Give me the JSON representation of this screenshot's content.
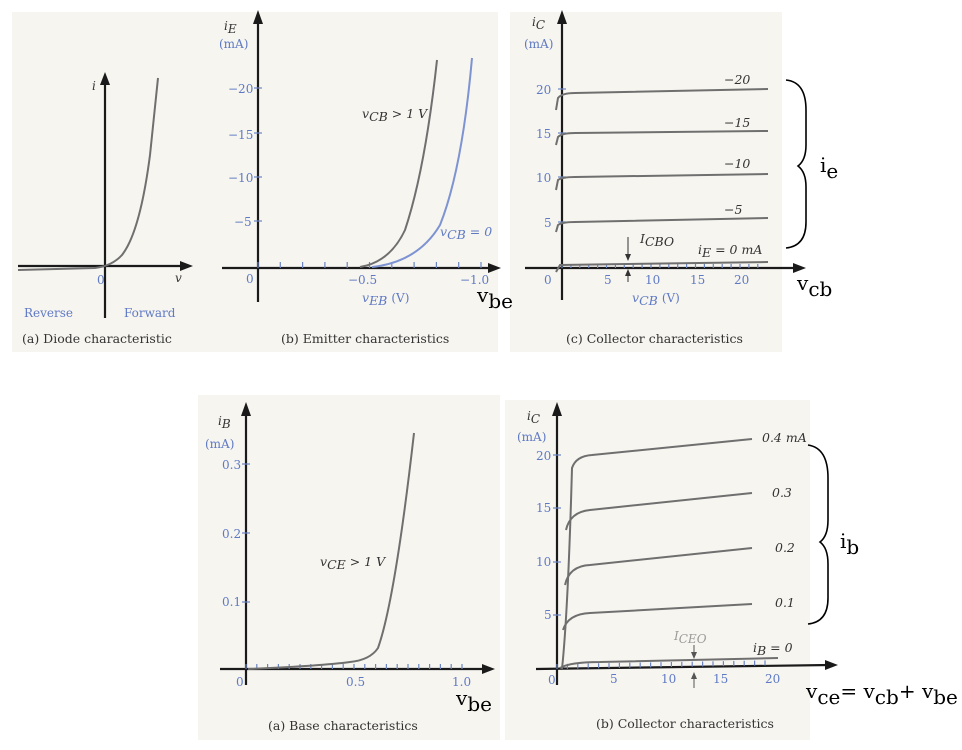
{
  "panels": {
    "diode": {
      "caption": "(a) Diode characteristic",
      "y_var": "i",
      "x_var": "v",
      "origin": "0",
      "left_label": "Reverse",
      "right_label": "Forward"
    },
    "emitter": {
      "caption": "(b) Emitter characteristics",
      "y_var": "i",
      "y_sub": "E",
      "y_unit": "(mA)",
      "x_var": "v",
      "x_sub": "EB",
      "x_unit": "(V)",
      "origin": "0",
      "ann_dark_var": "v",
      "ann_dark_sub": "CB",
      "ann_dark_rest": " > 1 V",
      "ann_blue_var": "v",
      "ann_blue_sub": "CB",
      "ann_blue_rest": " = 0",
      "handwritten": "v",
      "handwritten_sub": "be"
    },
    "collector_cb": {
      "caption": "(c) Collector characteristics",
      "y_var": "i",
      "y_sub": "C",
      "y_unit": "(mA)",
      "x_var": "v",
      "x_sub": "CB",
      "x_unit": "(V)",
      "origin": "0",
      "icbo_var": "I",
      "icbo_sub": "CBO",
      "ie_zero_var": "i",
      "ie_zero_sub": "E",
      "ie_zero_rest": " = 0 mA",
      "handwritten": "v",
      "handwritten_sub": "cb",
      "brace_label": "i",
      "brace_label_sub": "e"
    },
    "base": {
      "caption": "(a) Base characteristics",
      "y_var": "i",
      "y_sub": "B",
      "y_unit": "(mA)",
      "origin": "0",
      "ann_var": "v",
      "ann_sub": "CE",
      "ann_rest": " > 1 V",
      "handwritten": "v",
      "handwritten_sub": "be"
    },
    "collector_ce": {
      "caption": "(b) Collector characteristics",
      "y_var": "i",
      "y_sub": "C",
      "y_unit": "(mA)",
      "origin": "0",
      "iceo_var": "I",
      "iceo_sub": "CEO",
      "ib_zero_var": "i",
      "ib_zero_sub": "B",
      "ib_zero_rest": " = 0",
      "brace_label": "i",
      "brace_label_sub": "b",
      "handwritten_eq": {
        "a": "v",
        "a_sub": "ce",
        "eq": "= ",
        "b": "v",
        "b_sub": "cb",
        "plus": "+ ",
        "c": "v",
        "c_sub": "be"
      }
    }
  },
  "chart_data": [
    {
      "type": "line",
      "title": "(a) Diode characteristic",
      "xlabel": "v",
      "ylabel": "i",
      "series": [
        {
          "x": [
            -1.0,
            0.0,
            0.3,
            0.45,
            0.55,
            0.6
          ],
          "y": [
            -0.02,
            0.0,
            0.5,
            2.0,
            6.0,
            12.0
          ]
        }
      ]
    },
    {
      "type": "line",
      "title": "(b) Emitter characteristics",
      "xlabel": "vEB (V)",
      "ylabel": "iE (mA)",
      "x_ticks": [
        "0",
        "-0.5",
        "-1.0"
      ],
      "y_ticks": [
        "-5",
        "-10",
        "-15",
        "-20"
      ],
      "xlim": [
        0,
        -1.05
      ],
      "ylim": [
        0,
        -25
      ],
      "series": [
        {
          "name": "vCB > 1 V",
          "x": [
            -0.55,
            -0.6,
            -0.65,
            -0.7,
            -0.75,
            -0.8
          ],
          "y": [
            0,
            -0.8,
            -2.5,
            -6,
            -12,
            -23
          ]
        },
        {
          "name": "vCB = 0",
          "x": [
            -0.6,
            -0.7,
            -0.8,
            -0.88,
            -0.95,
            -1.0
          ],
          "y": [
            0,
            -0.8,
            -3,
            -7,
            -13,
            -23
          ]
        }
      ]
    },
    {
      "type": "line",
      "title": "(c) Collector characteristics",
      "xlabel": "vCB (V)",
      "ylabel": "iC (mA)",
      "x_ticks": [
        "0",
        "5",
        "10",
        "15",
        "20"
      ],
      "y_ticks": [
        "5",
        "10",
        "15",
        "20"
      ],
      "xlim": [
        -1.5,
        24
      ],
      "ylim": [
        -1,
        24
      ],
      "series": [
        {
          "name": "iE = 0 mA",
          "x": [
            0,
            23
          ],
          "y": [
            0.3,
            0.5
          ]
        },
        {
          "name": "-5",
          "x": [
            0,
            23
          ],
          "y": [
            4.8,
            5.6
          ]
        },
        {
          "name": "-10",
          "x": [
            0,
            23
          ],
          "y": [
            9.8,
            10.4
          ]
        },
        {
          "name": "-15",
          "x": [
            0,
            23
          ],
          "y": [
            14.7,
            15.4
          ]
        },
        {
          "name": "-20",
          "x": [
            0,
            23
          ],
          "y": [
            19.6,
            20.2
          ]
        }
      ],
      "annotations": [
        "ICBO"
      ]
    },
    {
      "type": "line",
      "title": "(a) Base characteristics",
      "ylabel": "iB (mA)",
      "x_ticks": [
        "0",
        "0.5",
        "1.0"
      ],
      "y_ticks": [
        "0.1",
        "0.2",
        "0.3"
      ],
      "xlim": [
        0,
        1.1
      ],
      "ylim": [
        0,
        0.36
      ],
      "series": [
        {
          "name": "vCE > 1 V",
          "x": [
            0,
            0.3,
            0.5,
            0.58,
            0.65,
            0.72,
            0.8
          ],
          "y": [
            0,
            0.002,
            0.012,
            0.03,
            0.1,
            0.2,
            0.34
          ]
        }
      ]
    },
    {
      "type": "line",
      "title": "(b) Collector characteristics",
      "ylabel": "iC (mA)",
      "x_ticks": [
        "0",
        "5",
        "10",
        "15",
        "20"
      ],
      "y_ticks": [
        "5",
        "10",
        "15",
        "20"
      ],
      "xlim": [
        0,
        22
      ],
      "ylim": [
        0,
        23
      ],
      "series": [
        {
          "name": "iB = 0",
          "x": [
            0,
            20
          ],
          "y": [
            0.3,
            1.0
          ]
        },
        {
          "name": "0.1",
          "x": [
            1,
            20
          ],
          "y": [
            5.6,
            6.0
          ]
        },
        {
          "name": "0.2",
          "x": [
            1,
            20
          ],
          "y": [
            10.5,
            11.3
          ]
        },
        {
          "name": "0.3",
          "x": [
            1,
            20
          ],
          "y": [
            15.5,
            16.4
          ]
        },
        {
          "name": "0.4 mA",
          "x": [
            1,
            20
          ],
          "y": [
            20.0,
            21.3
          ]
        }
      ],
      "annotations": [
        "ICEO"
      ]
    }
  ]
}
